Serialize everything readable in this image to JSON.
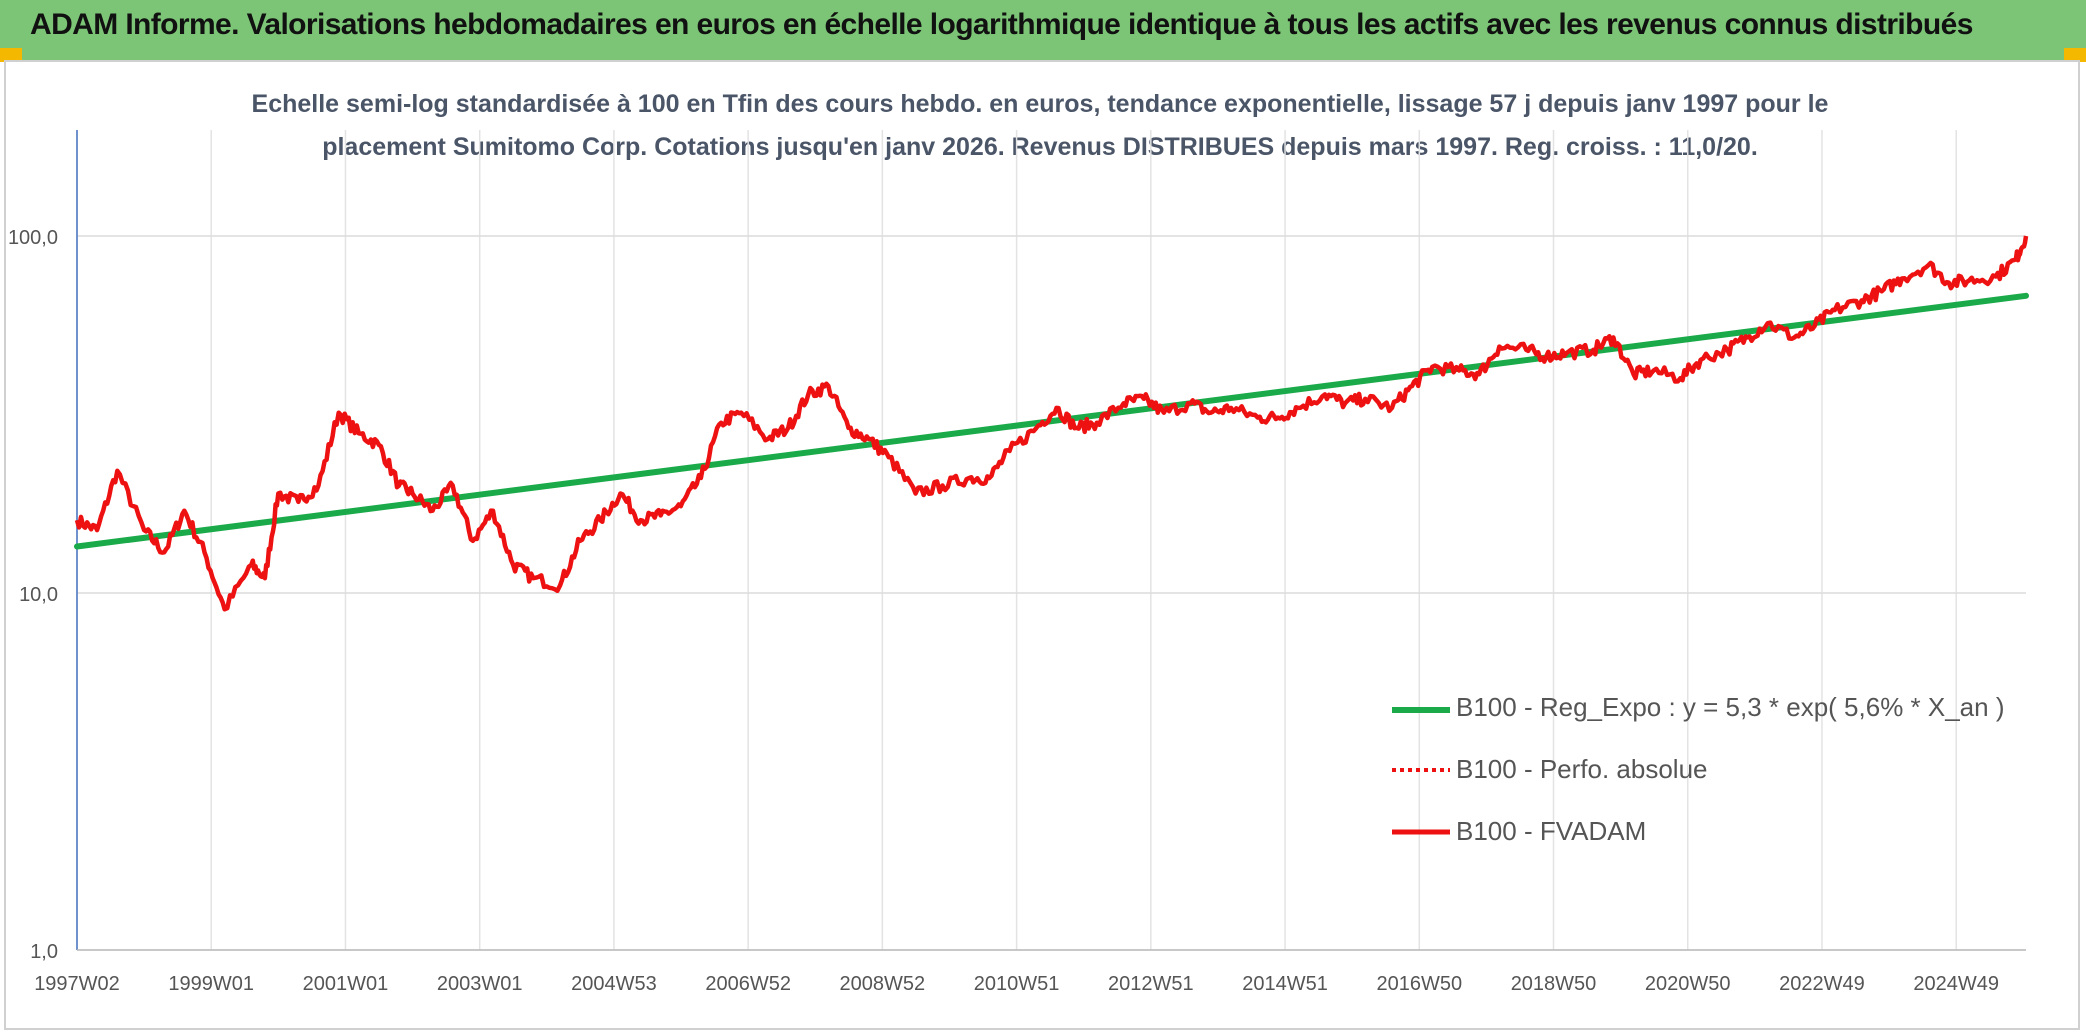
{
  "header": {
    "title": "ADAM Informe. Valorisations hebdomadaires en euros en échelle logarithmique identique à tous les actifs avec les revenus connus distribués"
  },
  "subtitle": {
    "line1": "Echelle semi-log standardisée à 100 en Tfin des cours hebdo. en euros, tendance exponentielle, lissage 57 j depuis janv 1997 pour le",
    "line2": "placement Sumitomo Corp. Cotations jusqu'en janv 2026. Revenus DISTRIBUES depuis mars 1997. Reg. croiss. : 11,0/20."
  },
  "chart_data": {
    "type": "line",
    "y_scale": "log",
    "ylim": [
      1,
      100
    ],
    "y_ticks": [
      "1,0",
      "10,0",
      "100,0"
    ],
    "x_tick_labels": [
      "1997W02",
      "1999W01",
      "2001W01",
      "2003W01",
      "2004W53",
      "2006W52",
      "2008W52",
      "2010W51",
      "2012W51",
      "2014W51",
      "2016W50",
      "2018W50",
      "2020W50",
      "2022W49",
      "2024W49"
    ],
    "grid": "vertical and horizontal",
    "legend_position": "right-middle",
    "series": [
      {
        "name": "B100 - Reg_Expo : y = 5,3 * exp( 5,6% *  X_an )",
        "color": "#1aaa4a",
        "style": "solid",
        "x": [
          1997.0,
          2026.05
        ],
        "y": [
          13.5,
          68
        ]
      },
      {
        "name": "B100 - Perfo. absolue",
        "color": "#ee1111",
        "style": "dotted",
        "x": [],
        "y": []
      },
      {
        "name": "B100 - FVADAM",
        "color": "#ee1111",
        "style": "solid",
        "x": [
          1997.0,
          1997.3,
          1997.6,
          1998.0,
          1998.3,
          1998.6,
          1998.9,
          1999.2,
          1999.6,
          1999.8,
          2000.0,
          2000.3,
          2000.6,
          2000.9,
          2001.2,
          2001.5,
          2001.8,
          2002.0,
          2002.3,
          2002.6,
          2002.9,
          2003.2,
          2003.5,
          2003.8,
          2004.2,
          2004.5,
          2004.8,
          2005.1,
          2005.4,
          2005.7,
          2006.0,
          2006.3,
          2006.6,
          2006.9,
          2007.3,
          2007.6,
          2007.9,
          2008.2,
          2008.5,
          2008.8,
          2009.1,
          2009.5,
          2009.9,
          2010.3,
          2010.6,
          2010.9,
          2011.3,
          2011.6,
          2011.9,
          2012.2,
          2012.6,
          2012.9,
          2013.2,
          2013.6,
          2013.9,
          2014.2,
          2014.6,
          2014.9,
          2015.2,
          2015.6,
          2015.9,
          2016.2,
          2016.6,
          2016.9,
          2017.2,
          2017.6,
          2017.9,
          2018.2,
          2018.6,
          2018.9,
          2019.2,
          2019.6,
          2019.9,
          2020.2,
          2020.5,
          2020.9,
          2021.2,
          2021.6,
          2021.9,
          2022.2,
          2022.6,
          2022.9,
          2023.2,
          2023.6,
          2023.9,
          2024.2,
          2024.6,
          2024.9,
          2025.2,
          2025.6,
          2025.9,
          2026.05
        ],
        "y": [
          16,
          15,
          22,
          15,
          13,
          17,
          13,
          9,
          12,
          11,
          19,
          18,
          20,
          32,
          28,
          26,
          20,
          19,
          17,
          20,
          14,
          17,
          12,
          11,
          10.5,
          14,
          16,
          19,
          16,
          16.5,
          17.5,
          21,
          30,
          32,
          27,
          29,
          36,
          38,
          29,
          27,
          24,
          19,
          20,
          21,
          21,
          25,
          29,
          33,
          29,
          30,
          34,
          35,
          32,
          34,
          32,
          33,
          31,
          31,
          33,
          36,
          34,
          35,
          33,
          38,
          43,
          42,
          41,
          49,
          48,
          46,
          47,
          48,
          52,
          41,
          42,
          40,
          45,
          48,
          52,
          57,
          52,
          56,
          62,
          66,
          70,
          76,
          83,
          74,
          75,
          77,
          86,
          100
        ]
      }
    ]
  }
}
